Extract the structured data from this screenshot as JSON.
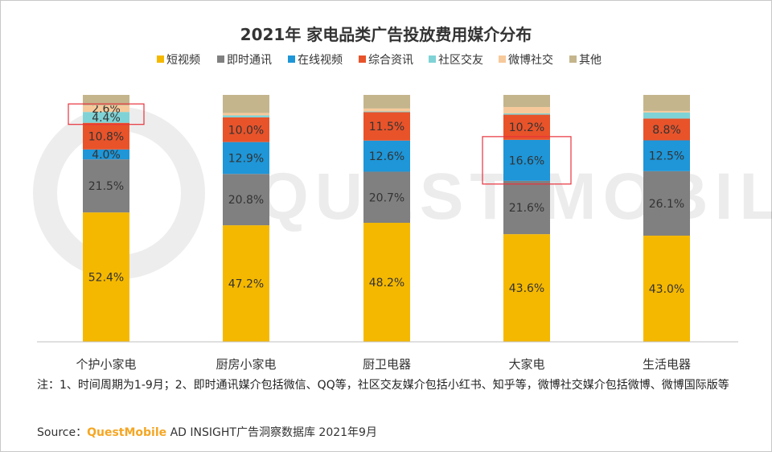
{
  "watermark": "QUEST MOBILE",
  "chart_data": {
    "type": "bar",
    "stacked": true,
    "normalized": true,
    "title": "2021年 家电品类广告投放费用媒介分布",
    "xlabel": "",
    "ylabel": "",
    "ylim": [
      0,
      100
    ],
    "grid": false,
    "legend": "top",
    "categories": [
      "个护小家电",
      "厨房小家电",
      "厨卫电器",
      "大家电",
      "生活电器"
    ],
    "series": [
      {
        "name": "短视频",
        "color": "#f5b800",
        "values": [
          52.4,
          47.2,
          48.2,
          43.6,
          43.0
        ],
        "labels": [
          "52.4%",
          "47.2%",
          "48.2%",
          "43.6%",
          "43.0%"
        ]
      },
      {
        "name": "即时通讯",
        "color": "#808080",
        "values": [
          21.5,
          20.8,
          20.7,
          21.6,
          26.1
        ],
        "labels": [
          "21.5%",
          "20.8%",
          "20.7%",
          "21.6%",
          "26.1%"
        ]
      },
      {
        "name": "在线视频",
        "color": "#1e96d8",
        "values": [
          4.0,
          12.9,
          12.6,
          16.6,
          12.5
        ],
        "labels": [
          "4.0%",
          "12.9%",
          "12.6%",
          "16.6%",
          "12.5%"
        ]
      },
      {
        "name": "综合资讯",
        "color": "#e8532a",
        "values": [
          10.8,
          10.0,
          11.5,
          10.2,
          8.8
        ],
        "labels": [
          "10.8%",
          "10.0%",
          "11.5%",
          "10.2%",
          "8.8%"
        ]
      },
      {
        "name": "社区交友",
        "color": "#7fd3d6",
        "values": [
          4.4,
          0.8,
          0.3,
          0.5,
          2.5
        ],
        "labels": [
          "4.4%",
          "",
          "",
          "",
          ""
        ]
      },
      {
        "name": "微博社交",
        "color": "#f7c99a",
        "values": [
          2.6,
          1.0,
          1.2,
          2.6,
          0.6
        ],
        "labels": [
          "2.6%",
          "",
          "",
          "",
          ""
        ]
      },
      {
        "name": "其他",
        "color": "#c4b58c",
        "values": [
          4.3,
          7.3,
          5.5,
          4.9,
          6.5
        ],
        "labels": [
          "",
          "",
          "",
          "",
          ""
        ]
      }
    ],
    "highlights": [
      {
        "category": "个护小家电",
        "series": [
          "社区交友",
          "微博社交"
        ]
      },
      {
        "category": "大家电",
        "series": [
          "在线视频"
        ]
      }
    ]
  },
  "note": "注：1、时间周期为1-9月；2、即时通讯媒介包括微信、QQ等，社区交友媒介包括小红书、知乎等，微博社交媒介包括微博、微博国际版等",
  "source": {
    "prefix": "Source：",
    "brand": "QuestMobile",
    "rest": " AD INSIGHT广告洞察数据库  2021年9月"
  }
}
